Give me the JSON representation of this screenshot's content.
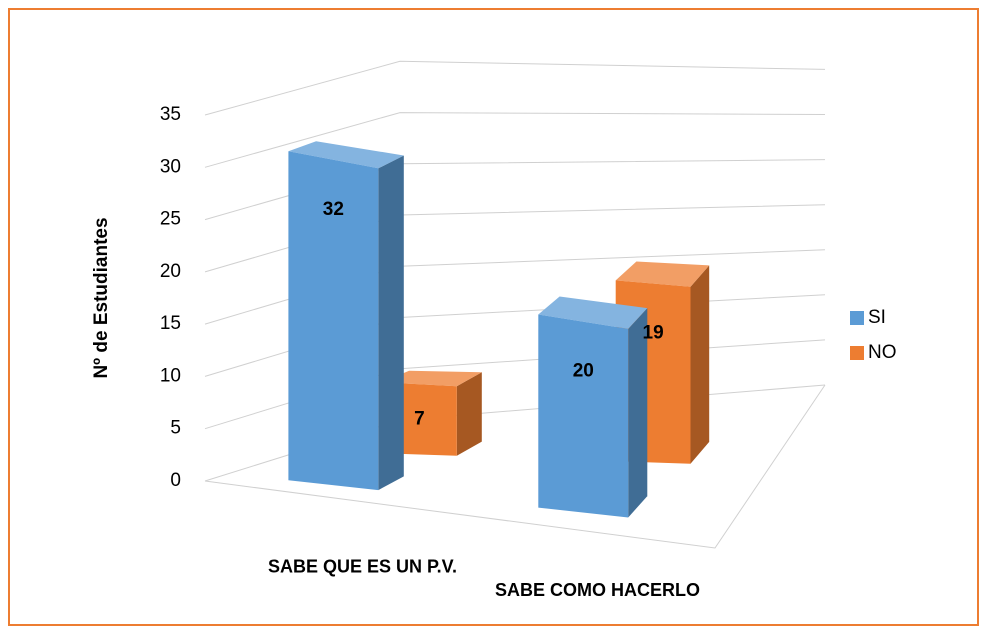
{
  "chart_data": {
    "type": "bar3d",
    "y_label": "Nº de Estudiantes",
    "categories": [
      "SABE QUE ES UN P.V.",
      "SABE COMO HACERLO"
    ],
    "series": [
      {
        "name": "SI",
        "color": "#5b9bd5",
        "values": [
          32,
          20
        ]
      },
      {
        "name": "NO",
        "color": "#ed7d31",
        "values": [
          7,
          19
        ]
      }
    ],
    "ylim": [
      0,
      35
    ],
    "yticks": [
      0,
      5,
      10,
      15,
      20,
      25,
      30,
      35
    ],
    "grid": true,
    "legend": "right"
  }
}
